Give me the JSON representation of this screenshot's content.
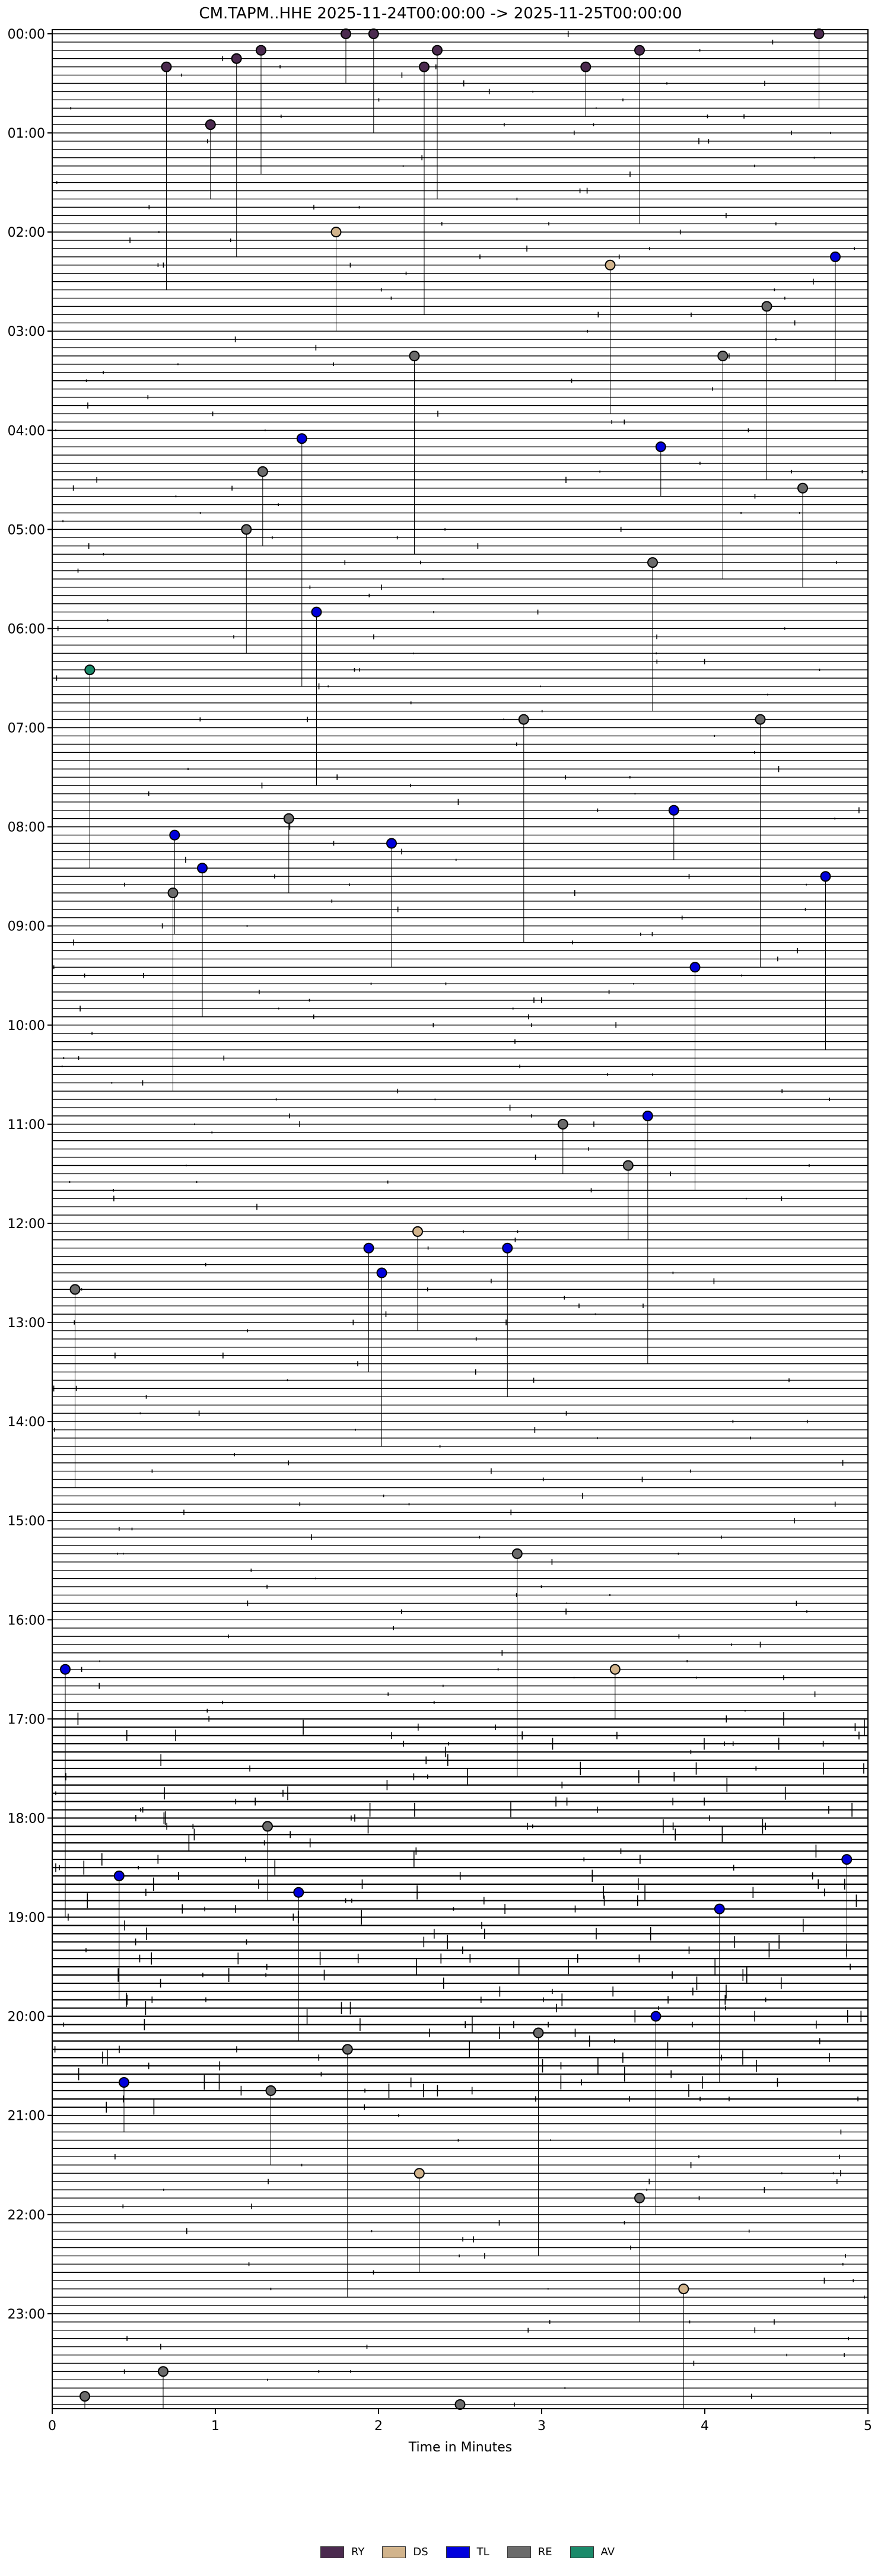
{
  "chart_data": {
    "type": "scatter",
    "title": "CM.TAPM..HHE  2025-11-24T00:00:00 -> 2025-11-25T00:00:00",
    "xlabel": "Time in Minutes",
    "ylabel": "",
    "xlim": [
      0,
      5
    ],
    "ylim_minutes_of_day": [
      0,
      1440
    ],
    "x_ticks": [
      "0",
      "1",
      "2",
      "3",
      "4",
      "5"
    ],
    "y_ticks": [
      "00:00",
      "01:00",
      "02:00",
      "03:00",
      "04:00",
      "05:00",
      "06:00",
      "07:00",
      "08:00",
      "09:00",
      "10:00",
      "11:00",
      "12:00",
      "13:00",
      "14:00",
      "15:00",
      "16:00",
      "17:00",
      "18:00",
      "19:00",
      "20:00",
      "21:00",
      "22:00",
      "23:00"
    ],
    "trace_interval_minutes": 5,
    "legend": [
      {
        "key": "RY",
        "color": "#4b2a4f"
      },
      {
        "key": "DS",
        "color": "#d2b48c"
      },
      {
        "key": "TL",
        "color": "#0000dd"
      },
      {
        "key": "RE",
        "color": "#6b6b6b"
      },
      {
        "key": "AV",
        "color": "#1a8a6a"
      }
    ],
    "events": [
      {
        "row": "00:00",
        "x": 1.8,
        "type": "RY"
      },
      {
        "row": "00:00",
        "x": 4.7,
        "type": "RY"
      },
      {
        "row": "00:00",
        "x": 1.97,
        "type": "RY"
      },
      {
        "row": "00:10",
        "x": 1.28,
        "type": "RY"
      },
      {
        "row": "00:10",
        "x": 2.36,
        "type": "RY"
      },
      {
        "row": "00:10",
        "x": 3.6,
        "type": "RY"
      },
      {
        "row": "00:15",
        "x": 1.13,
        "type": "RY"
      },
      {
        "row": "00:20",
        "x": 0.7,
        "type": "RY"
      },
      {
        "row": "00:20",
        "x": 2.28,
        "type": "RY"
      },
      {
        "row": "00:20",
        "x": 3.27,
        "type": "RY"
      },
      {
        "row": "00:55",
        "x": 0.97,
        "type": "RY"
      },
      {
        "row": "02:00",
        "x": 1.74,
        "type": "DS"
      },
      {
        "row": "02:15",
        "x": 4.8,
        "type": "TL"
      },
      {
        "row": "02:20",
        "x": 3.42,
        "type": "DS"
      },
      {
        "row": "02:45",
        "x": 4.38,
        "type": "RE"
      },
      {
        "row": "03:15",
        "x": 2.22,
        "type": "RE"
      },
      {
        "row": "03:15",
        "x": 4.11,
        "type": "RE"
      },
      {
        "row": "04:05",
        "x": 1.53,
        "type": "TL"
      },
      {
        "row": "04:10",
        "x": 3.73,
        "type": "TL"
      },
      {
        "row": "04:25",
        "x": 1.29,
        "type": "RE"
      },
      {
        "row": "04:35",
        "x": 4.6,
        "type": "RE"
      },
      {
        "row": "05:00",
        "x": 1.19,
        "type": "RE"
      },
      {
        "row": "05:20",
        "x": 3.68,
        "type": "RE"
      },
      {
        "row": "05:50",
        "x": 1.62,
        "type": "TL"
      },
      {
        "row": "06:25",
        "x": 0.23,
        "type": "AV"
      },
      {
        "row": "06:55",
        "x": 2.89,
        "type": "RE"
      },
      {
        "row": "06:55",
        "x": 4.34,
        "type": "RE"
      },
      {
        "row": "07:50",
        "x": 3.81,
        "type": "TL"
      },
      {
        "row": "07:55",
        "x": 1.45,
        "type": "RE"
      },
      {
        "row": "08:05",
        "x": 0.75,
        "type": "TL"
      },
      {
        "row": "08:10",
        "x": 2.08,
        "type": "TL"
      },
      {
        "row": "08:25",
        "x": 0.92,
        "type": "TL"
      },
      {
        "row": "08:30",
        "x": 4.74,
        "type": "TL"
      },
      {
        "row": "08:40",
        "x": 0.74,
        "type": "RE"
      },
      {
        "row": "09:25",
        "x": 3.94,
        "type": "TL"
      },
      {
        "row": "10:55",
        "x": 3.65,
        "type": "TL"
      },
      {
        "row": "11:00",
        "x": 3.13,
        "type": "RE"
      },
      {
        "row": "11:25",
        "x": 3.53,
        "type": "RE"
      },
      {
        "row": "12:05",
        "x": 2.24,
        "type": "DS"
      },
      {
        "row": "12:15",
        "x": 1.94,
        "type": "TL"
      },
      {
        "row": "12:15",
        "x": 2.79,
        "type": "TL"
      },
      {
        "row": "12:30",
        "x": 2.02,
        "type": "TL"
      },
      {
        "row": "12:40",
        "x": 0.14,
        "type": "RE"
      },
      {
        "row": "15:20",
        "x": 2.85,
        "type": "RE"
      },
      {
        "row": "16:30",
        "x": 0.08,
        "type": "TL"
      },
      {
        "row": "16:30",
        "x": 3.45,
        "type": "DS"
      },
      {
        "row": "18:05",
        "x": 1.32,
        "type": "RE"
      },
      {
        "row": "18:25",
        "x": 4.87,
        "type": "TL"
      },
      {
        "row": "18:35",
        "x": 0.41,
        "type": "TL"
      },
      {
        "row": "18:45",
        "x": 1.51,
        "type": "TL"
      },
      {
        "row": "18:55",
        "x": 4.09,
        "type": "TL"
      },
      {
        "row": "20:00",
        "x": 3.7,
        "type": "TL"
      },
      {
        "row": "20:10",
        "x": 2.98,
        "type": "RE"
      },
      {
        "row": "20:20",
        "x": 1.81,
        "type": "RE"
      },
      {
        "row": "20:40",
        "x": 0.44,
        "type": "TL"
      },
      {
        "row": "20:45",
        "x": 1.34,
        "type": "RE"
      },
      {
        "row": "21:35",
        "x": 2.25,
        "type": "DS"
      },
      {
        "row": "21:50",
        "x": 3.6,
        "type": "RE"
      },
      {
        "row": "22:45",
        "x": 3.87,
        "type": "DS"
      },
      {
        "row": "23:35",
        "x": 0.68,
        "type": "RE"
      },
      {
        "row": "23:50",
        "x": 0.2,
        "type": "RE"
      },
      {
        "row": "23:55",
        "x": 2.5,
        "type": "RE"
      }
    ]
  }
}
